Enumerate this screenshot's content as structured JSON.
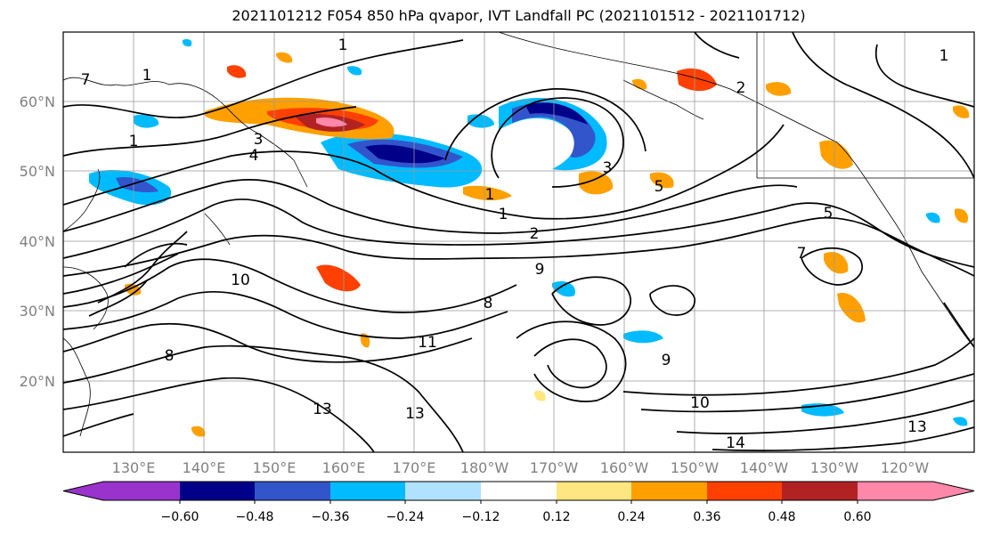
{
  "title": "2021101212 F054 850 hPa qvapor, IVT Landfall PC (2021101512 - 2021101712)",
  "map": {
    "lat_labels": [
      "60°N",
      "50°N",
      "40°N",
      "30°N",
      "20°N"
    ],
    "lon_labels": [
      "130°E",
      "140°E",
      "150°E",
      "160°E",
      "170°E",
      "180°W",
      "170°W",
      "160°W",
      "150°W",
      "140°W",
      "130°W",
      "120°W"
    ],
    "contour_labels": [
      {
        "id": "c1",
        "text": "1"
      },
      {
        "id": "c2",
        "text": "1"
      },
      {
        "id": "c3",
        "text": "1"
      },
      {
        "id": "c4",
        "text": "1"
      },
      {
        "id": "c5",
        "text": "1"
      },
      {
        "id": "c6",
        "text": "2"
      },
      {
        "id": "c7",
        "text": "2"
      },
      {
        "id": "c8",
        "text": "3"
      },
      {
        "id": "c9",
        "text": "3"
      },
      {
        "id": "c10",
        "text": "4"
      },
      {
        "id": "c11",
        "text": "5"
      },
      {
        "id": "c12",
        "text": "5"
      },
      {
        "id": "c13",
        "text": "1"
      },
      {
        "id": "c14",
        "text": "7"
      },
      {
        "id": "c15",
        "text": "8"
      },
      {
        "id": "c16",
        "text": "8"
      },
      {
        "id": "c17",
        "text": "9"
      },
      {
        "id": "c18",
        "text": "9"
      },
      {
        "id": "c19",
        "text": "10"
      },
      {
        "id": "c20",
        "text": "11"
      },
      {
        "id": "c21",
        "text": "13"
      },
      {
        "id": "c22",
        "text": "13"
      },
      {
        "id": "c23",
        "text": "13"
      },
      {
        "id": "c24",
        "text": "14"
      },
      {
        "id": "c25",
        "text": "7"
      },
      {
        "id": "c26",
        "text": "10"
      }
    ]
  },
  "colorbar": {
    "colors": [
      "#9933cc",
      "#000088",
      "#3355cc",
      "#00bbff",
      "#b0e2ff",
      "#ffffff",
      "#ffe680",
      "#ffa000",
      "#ff4000",
      "#b22222",
      "#ff88aa"
    ],
    "tick_labels": [
      "−0.60",
      "−0.48",
      "−0.36",
      "−0.24",
      "−0.12",
      "0.12",
      "0.24",
      "0.36",
      "0.48",
      "0.60"
    ]
  }
}
